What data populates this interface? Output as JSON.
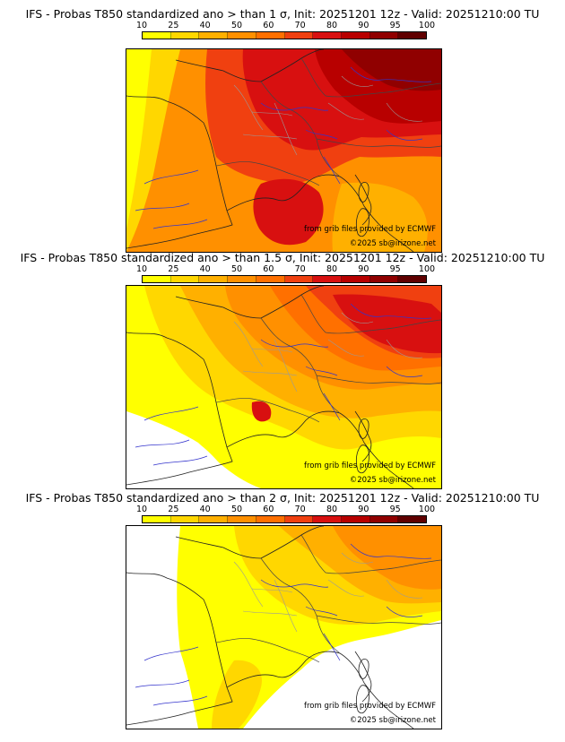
{
  "legend": {
    "ticks": [
      "10",
      "25",
      "40",
      "50",
      "60",
      "70",
      "80",
      "90",
      "95",
      "100"
    ],
    "colors": [
      "#ffff00",
      "#ffd700",
      "#ffb000",
      "#ff9000",
      "#ff7000",
      "#f04010",
      "#d81010",
      "#b80000",
      "#900000",
      "#600000"
    ]
  },
  "panels": [
    {
      "title": "IFS - Probas T850  standardized ano > than 1 σ, Init: 20251201 12z - Valid: 20251210:00 TU",
      "source": "from grib files provided by ECMWF",
      "copyright": "©2025 sb@irizone.net"
    },
    {
      "title": "IFS - Probas T850  standardized ano > than 1.5 σ, Init: 20251201 12z - Valid: 20251210:00 TU",
      "source": "from grib files provided by ECMWF",
      "copyright": "©2025 sb@irizone.net"
    },
    {
      "title": "IFS - Probas T850  standardized ano > than 2 σ, Init: 20251201 12z - Valid: 20251210:00 TU",
      "source": "from grib files provided by ECMWF",
      "copyright": "©2025 sb@irizone.net"
    }
  ]
}
